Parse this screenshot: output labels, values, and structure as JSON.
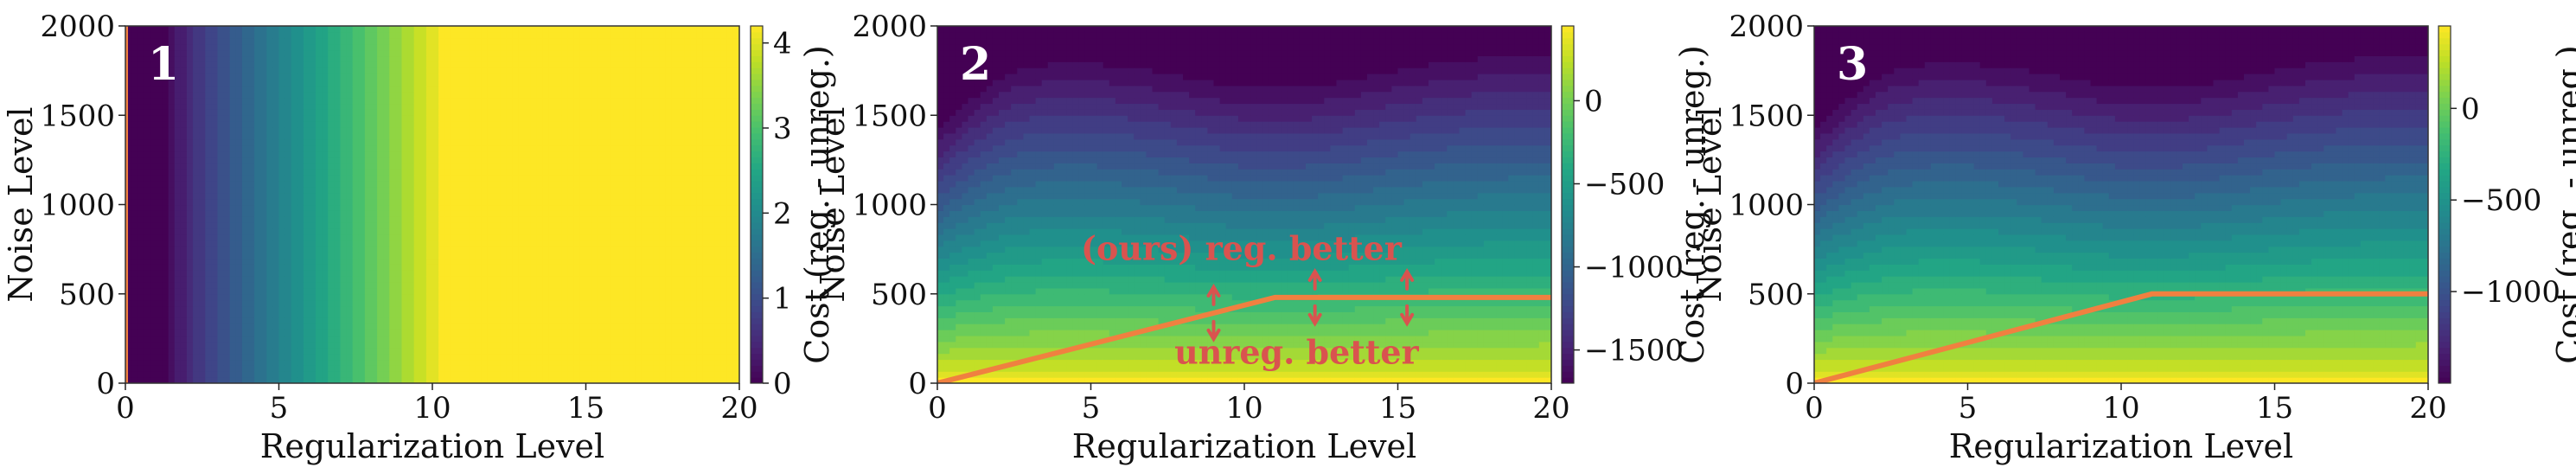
{
  "chart_data": [
    {
      "type": "heatmap",
      "panel_label": "1",
      "xlabel": "Regularization Level",
      "ylabel": "Noise Level",
      "xlim": [
        0,
        20
      ],
      "ylim": [
        0,
        2000
      ],
      "xticks": [
        "0",
        "5",
        "10",
        "15",
        "20"
      ],
      "yticks": [
        "0",
        "500",
        "1000",
        "1500",
        "2000"
      ],
      "colorbar_label": "Cost (reg. - unreg.)",
      "colorbar_range": [
        0,
        4.2
      ],
      "colorbar_ticks": [
        "0",
        "1",
        "2",
        "3",
        "4"
      ],
      "colormap": "viridis",
      "levels": 24,
      "field": "Cost difference varies only with regularization level; rises from 0 near level 1 to about 4.2 at level 10.5 and stays saturated beyond.",
      "boundary": {
        "x": [
          0,
          0
        ],
        "y": [
          0,
          2000
        ],
        "color": "#f08040"
      },
      "annotations": []
    },
    {
      "type": "heatmap",
      "panel_label": "2",
      "xlabel": "Regularization Level",
      "ylabel": "Noise Level",
      "xlim": [
        0,
        20
      ],
      "ylim": [
        0,
        2000
      ],
      "xticks": [
        "0",
        "5",
        "10",
        "15",
        "20"
      ],
      "yticks": [
        "0",
        "500",
        "1000",
        "1500",
        "2000"
      ],
      "colorbar_label": "Cost (reg. - unreg.)",
      "colorbar_range": [
        -1700,
        450
      ],
      "colorbar_ticks": [
        "0",
        "−500",
        "−1000",
        "−1500"
      ],
      "colormap": "viridis",
      "levels": 22,
      "boundary": {
        "x": [
          0,
          11,
          20
        ],
        "y": [
          0,
          480,
          480
        ],
        "color": "#f08040"
      },
      "annotations": [
        {
          "text": "(ours) reg. better",
          "x": 9.9,
          "y": 690
        },
        {
          "text": "unreg. better",
          "x": 11.7,
          "y": 110
        }
      ],
      "arrows_x": [
        9,
        12.3,
        15.3
      ]
    },
    {
      "type": "heatmap",
      "panel_label": "3",
      "xlabel": "Regularization Level",
      "ylabel": "Noise Level",
      "xlim": [
        0,
        20
      ],
      "ylim": [
        0,
        2000
      ],
      "xticks": [
        "0",
        "5",
        "10",
        "15",
        "20"
      ],
      "yticks": [
        "0",
        "500",
        "1000",
        "1500",
        "2000"
      ],
      "colorbar_label": "Cost (reg. - unreg.)",
      "colorbar_range": [
        -1500,
        450
      ],
      "colorbar_ticks": [
        "0",
        "−500",
        "−1000"
      ],
      "colormap": "viridis",
      "levels": 22,
      "boundary": {
        "x": [
          0,
          11,
          20
        ],
        "y": [
          0,
          500,
          500
        ],
        "color": "#f08040"
      },
      "annotations": []
    }
  ]
}
